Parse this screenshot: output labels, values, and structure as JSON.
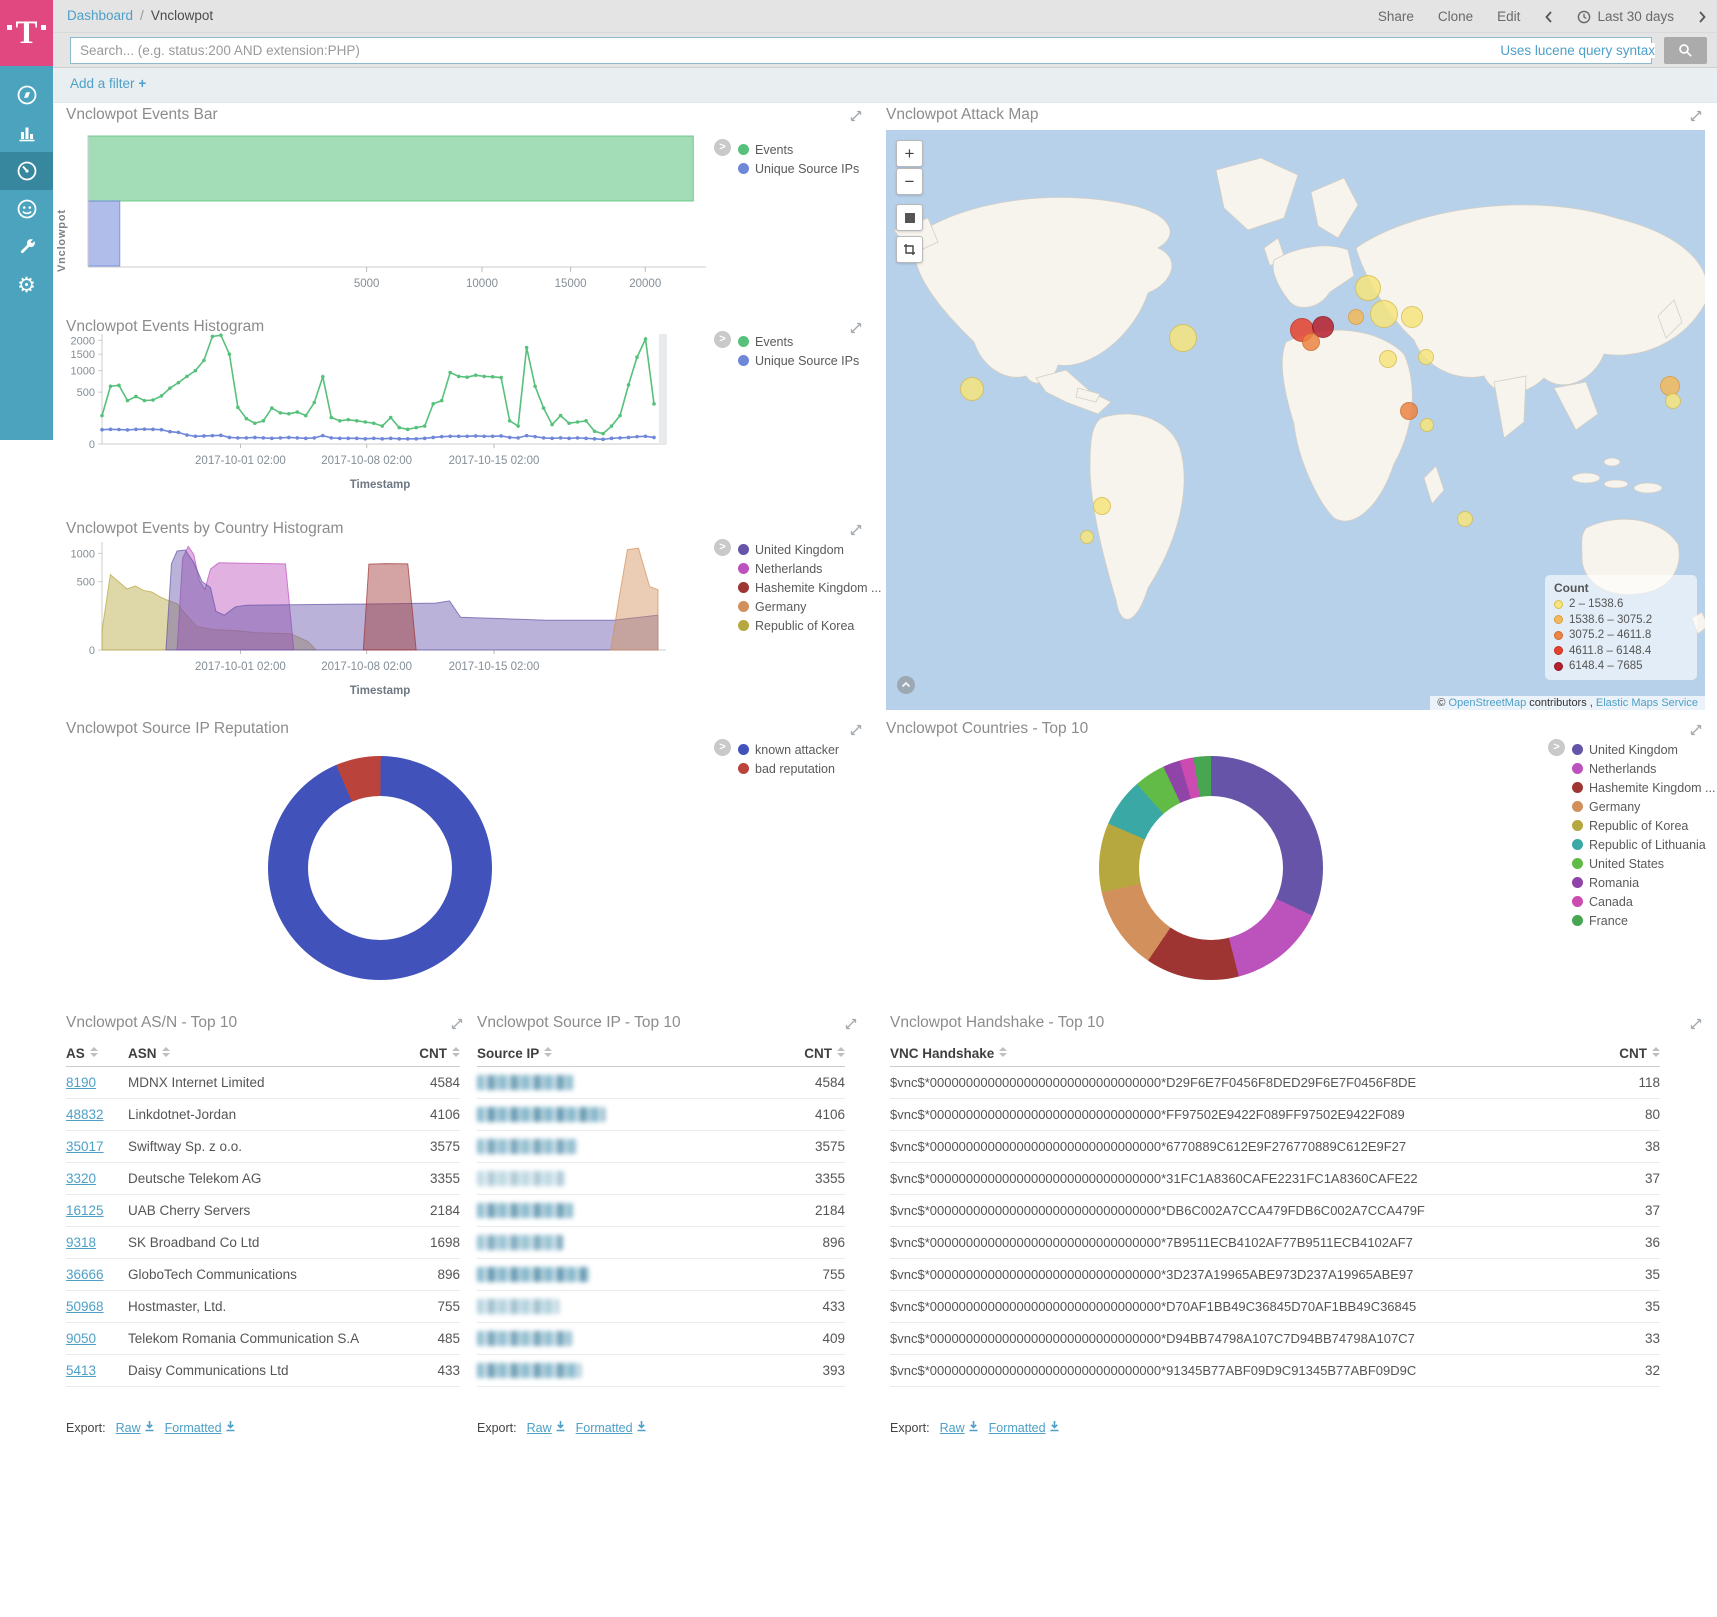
{
  "topbar": {
    "breadcrumb": {
      "root": "Dashboard",
      "separator": "/",
      "current": "Vnclowpot"
    },
    "actions": {
      "share": "Share",
      "clone": "Clone",
      "edit": "Edit"
    },
    "time_range": "Last 30 days"
  },
  "search": {
    "placeholder": "Search... (e.g. status:200 AND extension:PHP)",
    "syntax_hint": "Uses lucene query syntax"
  },
  "filter_bar": {
    "add_filter": "Add a filter",
    "plus": "+"
  },
  "sidebar": {
    "items": [
      "discover",
      "visualize",
      "dashboard",
      "timelion",
      "dev-tools",
      "management"
    ],
    "selected": "dashboard"
  },
  "panels": {
    "events_bar": "Vnclowpot Events Bar",
    "attack_map": "Vnclowpot Attack Map",
    "events_histogram": "Vnclowpot Events Histogram",
    "country_histogram": "Vnclowpot Events by Country Histogram",
    "reputation": "Vnclowpot Source IP Reputation",
    "countries": "Vnclowpot Countries - Top 10",
    "asn": "Vnclowpot AS/N - Top 10",
    "source_ip": "Vnclowpot Source IP - Top 10",
    "handshake": "Vnclowpot Handshake - Top 10"
  },
  "axis": {
    "timestamp_label": "Timestamp",
    "events_bar_ylabel": "Vnclowpot"
  },
  "export": {
    "label": "Export:",
    "raw": "Raw",
    "formatted": "Formatted"
  },
  "map_ui": {
    "controls": {
      "zoom_in": "+",
      "zoom_out": "−"
    },
    "attribution": {
      "prefix": "©",
      "osm_link": "OpenStreetMap",
      "middle": "contributors ,",
      "ems_link": "Elastic Maps Service"
    }
  },
  "chart_data": [
    {
      "id": "events_bar",
      "type": "bar",
      "orientation": "horizontal",
      "scale": "sqrt",
      "category": "Vnclowpot",
      "xlim": [
        0,
        24600
      ],
      "xticks": [
        5000,
        10000,
        15000,
        20000
      ],
      "series": [
        {
          "name": "Events",
          "value": 23600,
          "color": "#57C17B"
        },
        {
          "name": "Unique Source IPs",
          "value": 65,
          "color": "#6F87D8"
        }
      ]
    },
    {
      "id": "events_histogram",
      "type": "line",
      "scale": "sqrt",
      "xlabel": "Timestamp",
      "ylim": [
        0,
        2250
      ],
      "yticks": [
        0,
        500,
        1000,
        1500,
        2000
      ],
      "xticks": [
        "2017-10-01 02:00",
        "2017-10-08 02:00",
        "2017-10-15 02:00"
      ],
      "xtick_pos": [
        0.249,
        0.476,
        0.705
      ],
      "series": [
        {
          "name": "Events",
          "color": "#57C17B",
          "values": [
            150,
            620,
            640,
            350,
            420,
            350,
            360,
            430,
            580,
            700,
            850,
            1000,
            1300,
            2150,
            2200,
            1500,
            250,
            120,
            80,
            100,
            240,
            180,
            170,
            190,
            150,
            320,
            840,
            130,
            100,
            110,
            100,
            90,
            80,
            60,
            130,
            50,
            40,
            50,
            60,
            300,
            350,
            950,
            850,
            830,
            880,
            850,
            840,
            820,
            100,
            60,
            1730,
            620,
            240,
            70,
            150,
            80,
            90,
            100,
            30,
            20,
            60,
            150,
            650,
            1400,
            2050,
            300
          ]
        },
        {
          "name": "Unique Source IPs",
          "color": "#6F87D8",
          "values": [
            38,
            40,
            39,
            37,
            40,
            41,
            40,
            38,
            28,
            25,
            15,
            11,
            12,
            13,
            14,
            8,
            7,
            7,
            8,
            7,
            6,
            7,
            8,
            7,
            6,
            7,
            13,
            7,
            6,
            6,
            6,
            5,
            6,
            5,
            6,
            5,
            5,
            5,
            6,
            8,
            10,
            11,
            11,
            11,
            12,
            11,
            11,
            12,
            8,
            7,
            13,
            10,
            7,
            6,
            7,
            6,
            7,
            6,
            5,
            4,
            6,
            7,
            8,
            10,
            11,
            8
          ]
        }
      ]
    },
    {
      "id": "country_histogram",
      "type": "area",
      "scale": "sqrt",
      "xlabel": "Timestamp",
      "ylim": [
        0,
        1250
      ],
      "yticks": [
        0,
        500,
        1000
      ],
      "xticks": [
        "2017-10-01 02:00",
        "2017-10-08 02:00",
        "2017-10-15 02:00"
      ],
      "xtick_pos": [
        0.249,
        0.476,
        0.705
      ],
      "series": [
        {
          "name": "Republic of Korea",
          "color": "#B6A73F",
          "points": [
            [
              0,
              40
            ],
            [
              1.5,
              610
            ],
            [
              3,
              500
            ],
            [
              4.5,
              400
            ],
            [
              6,
              440
            ],
            [
              7.5,
              380
            ],
            [
              9,
              360
            ],
            [
              10.5,
              300
            ],
            [
              12,
              260
            ],
            [
              13.5,
              230
            ],
            [
              15,
              140
            ],
            [
              17,
              60
            ],
            [
              20,
              45
            ],
            [
              24,
              40
            ],
            [
              28,
              32
            ],
            [
              31,
              30
            ],
            [
              34,
              28
            ],
            [
              37,
              8
            ],
            [
              38.5,
              0
            ]
          ]
        },
        {
          "name": "Netherlands",
          "color": "#BC52BC",
          "points": [
            [
              13.5,
              0
            ],
            [
              14.5,
              900
            ],
            [
              15.5,
              1150
            ],
            [
              16.5,
              980
            ],
            [
              17.5,
              520
            ],
            [
              18.5,
              390
            ],
            [
              19.5,
              700
            ],
            [
              21,
              815
            ],
            [
              27,
              805
            ],
            [
              33,
              795
            ],
            [
              34.5,
              0
            ]
          ]
        },
        {
          "name": "United Kingdom",
          "color": "#6554A8",
          "points": [
            [
              11.5,
              0
            ],
            [
              12.5,
              800
            ],
            [
              13.5,
              1050
            ],
            [
              15,
              1070
            ],
            [
              16.5,
              820
            ],
            [
              18,
              500
            ],
            [
              19.5,
              420
            ],
            [
              20.5,
              160
            ],
            [
              22,
              130
            ],
            [
              24,
              200
            ],
            [
              26,
              215
            ],
            [
              45,
              225
            ],
            [
              60,
              235
            ],
            [
              62.5,
              258
            ],
            [
              64.5,
              115
            ],
            [
              80,
              95
            ],
            [
              92,
              95
            ],
            [
              95,
              108
            ],
            [
              100,
              130
            ]
          ]
        },
        {
          "name": "Hashemite Kingdom ...",
          "color": "#9E3533",
          "points": [
            [
              47,
              0
            ],
            [
              48,
              790
            ],
            [
              51,
              800
            ],
            [
              55,
              795
            ],
            [
              56.5,
              0
            ]
          ]
        },
        {
          "name": "Germany",
          "color": "#D2915C",
          "points": [
            [
              91.5,
              0
            ],
            [
              93,
              290
            ],
            [
              94.5,
              1080
            ],
            [
              96.5,
              1110
            ],
            [
              98.5,
              430
            ],
            [
              100,
              390
            ]
          ]
        }
      ],
      "legend_order": [
        "United Kingdom",
        "Netherlands",
        "Hashemite Kingdom ...",
        "Germany",
        "Republic of Korea"
      ]
    },
    {
      "id": "reputation_donut",
      "type": "pie",
      "donut": true,
      "start_angle": -23,
      "segments": [
        {
          "label": "bad reputation",
          "pct": 6.5,
          "color": "#BA443C"
        },
        {
          "label": "known attacker",
          "pct": 93.5,
          "color": "#4252BB"
        }
      ],
      "legend_order": [
        "known attacker",
        "bad reputation"
      ]
    },
    {
      "id": "countries_donut",
      "type": "pie",
      "donut": true,
      "start_angle": 0,
      "segments": [
        {
          "label": "United Kingdom",
          "pct": 32,
          "color": "#6554A8"
        },
        {
          "label": "Netherlands",
          "pct": 14,
          "color": "#BC52BC"
        },
        {
          "label": "Hashemite Kingdom ...",
          "pct": 13.5,
          "color": "#9E3533"
        },
        {
          "label": "Germany",
          "pct": 12,
          "color": "#D2915C"
        },
        {
          "label": "Republic of Korea",
          "pct": 10,
          "color": "#B6A73F"
        },
        {
          "label": "Republic of Lithuania",
          "pct": 7,
          "color": "#3AA8A4"
        },
        {
          "label": "United States",
          "pct": 4.5,
          "color": "#63BB47"
        },
        {
          "label": "Romania",
          "pct": 2.5,
          "color": "#9044A8"
        },
        {
          "label": "Canada",
          "pct": 2,
          "color": "#CB4BB0"
        },
        {
          "label": "France",
          "pct": 2.5,
          "color": "#48A552"
        }
      ]
    },
    {
      "id": "attack_map",
      "type": "map",
      "legend_title": "Count",
      "tiers": [
        {
          "label": "2 – 1538.6",
          "color": "#F6E57E",
          "stroke": "#D9BE4F"
        },
        {
          "label": "1538.6 – 3075.2",
          "color": "#F2BA5D",
          "stroke": "#DD9A3E"
        },
        {
          "label": "3075.2 – 4611.8",
          "color": "#EC8543",
          "stroke": "#CE6B2F"
        },
        {
          "label": "4611.8 – 6148.4",
          "color": "#E6432E",
          "stroke": "#C22F20"
        },
        {
          "label": "6148.4 – 7685",
          "color": "#B7202E",
          "stroke": "#8E1622"
        }
      ],
      "bubbles": [
        {
          "x": 36.3,
          "y": 35.9,
          "r": 14,
          "tier": 0
        },
        {
          "x": 10.5,
          "y": 44.6,
          "r": 12,
          "tier": 0
        },
        {
          "x": 26.4,
          "y": 64.8,
          "r": 9,
          "tier": 0
        },
        {
          "x": 24.5,
          "y": 70.1,
          "r": 7,
          "tier": 0
        },
        {
          "x": 50.8,
          "y": 34.5,
          "r": 12,
          "tier": 3
        },
        {
          "x": 53.4,
          "y": 34.0,
          "r": 11,
          "tier": 4
        },
        {
          "x": 51.9,
          "y": 36.6,
          "r": 9,
          "tier": 2
        },
        {
          "x": 58.9,
          "y": 27.3,
          "r": 13,
          "tier": 0
        },
        {
          "x": 60.8,
          "y": 31.8,
          "r": 14,
          "tier": 0
        },
        {
          "x": 64.2,
          "y": 32.3,
          "r": 11,
          "tier": 0
        },
        {
          "x": 57.4,
          "y": 32.3,
          "r": 8,
          "tier": 1
        },
        {
          "x": 61.3,
          "y": 39.4,
          "r": 9,
          "tier": 0
        },
        {
          "x": 65.9,
          "y": 39.2,
          "r": 8,
          "tier": 0
        },
        {
          "x": 63.9,
          "y": 48.4,
          "r": 9,
          "tier": 2
        },
        {
          "x": 66.0,
          "y": 50.9,
          "r": 7,
          "tier": 0
        },
        {
          "x": 95.7,
          "y": 44.2,
          "r": 10,
          "tier": 1
        },
        {
          "x": 96.1,
          "y": 46.7,
          "r": 8,
          "tier": 0
        },
        {
          "x": 70.7,
          "y": 67.0,
          "r": 8,
          "tier": 0
        }
      ]
    },
    {
      "id": "asn_table",
      "type": "table",
      "columns": [
        "AS",
        "ASN",
        "CNT"
      ],
      "rows": [
        [
          "8190",
          "MDNX Internet Limited",
          "4584"
        ],
        [
          "48832",
          "Linkdotnet-Jordan",
          "4106"
        ],
        [
          "35017",
          "Swiftway Sp. z o.o.",
          "3575"
        ],
        [
          "3320",
          "Deutsche Telekom AG",
          "3355"
        ],
        [
          "16125",
          "UAB Cherry Servers",
          "2184"
        ],
        [
          "9318",
          "SK Broadband Co Ltd",
          "1698"
        ],
        [
          "36666",
          "GloboTech Communications",
          "896"
        ],
        [
          "50968",
          "Hostmaster, Ltd.",
          "755"
        ],
        [
          "9050",
          "Telekom Romania Communication S.A",
          "485"
        ],
        [
          "5413",
          "Daisy Communications Ltd",
          "433"
        ]
      ]
    },
    {
      "id": "source_ip_table",
      "type": "table",
      "columns": [
        "Source IP",
        "CNT"
      ],
      "redacted": true,
      "rows": [
        {
          "blur_w": 96,
          "blur_o": 0.9,
          "cnt": "4584"
        },
        {
          "blur_w": 128,
          "blur_o": 0.95,
          "cnt": "4106"
        },
        {
          "blur_w": 100,
          "blur_o": 0.85,
          "cnt": "3575"
        },
        {
          "blur_w": 88,
          "blur_o": 0.5,
          "cnt": "3355"
        },
        {
          "blur_w": 96,
          "blur_o": 0.9,
          "cnt": "2184"
        },
        {
          "blur_w": 86,
          "blur_o": 0.8,
          "cnt": "896"
        },
        {
          "blur_w": 112,
          "blur_o": 0.95,
          "cnt": "755"
        },
        {
          "blur_w": 82,
          "blur_o": 0.6,
          "cnt": "433"
        },
        {
          "blur_w": 95,
          "blur_o": 0.85,
          "cnt": "409"
        },
        {
          "blur_w": 104,
          "blur_o": 0.9,
          "cnt": "393"
        }
      ]
    },
    {
      "id": "handshake_table",
      "type": "table",
      "columns": [
        "VNC Handshake",
        "CNT"
      ],
      "rows": [
        [
          "$vnc$*00000000000000000000000000000000*D29F6E7F0456F8DED29F6E7F0456F8DE",
          "118"
        ],
        [
          "$vnc$*00000000000000000000000000000000*FF97502E9422F089FF97502E9422F089",
          "80"
        ],
        [
          "$vnc$*00000000000000000000000000000000*6770889C612E9F276770889C612E9F27",
          "38"
        ],
        [
          "$vnc$*00000000000000000000000000000000*31FC1A8360CAFE2231FC1A8360CAFE22",
          "37"
        ],
        [
          "$vnc$*00000000000000000000000000000000*DB6C002A7CCA479FDB6C002A7CCA479F",
          "37"
        ],
        [
          "$vnc$*00000000000000000000000000000000*7B9511ECB4102AF77B9511ECB4102AF7",
          "36"
        ],
        [
          "$vnc$*00000000000000000000000000000000*3D237A19965ABE973D237A19965ABE97",
          "35"
        ],
        [
          "$vnc$*00000000000000000000000000000000*D70AF1BB49C36845D70AF1BB49C36845",
          "35"
        ],
        [
          "$vnc$*00000000000000000000000000000000*D94BB74798A107C7D94BB74798A107C7",
          "33"
        ],
        [
          "$vnc$*00000000000000000000000000000000*91345B77ABF09D9C91345B77ABF09D9C",
          "32"
        ]
      ]
    }
  ]
}
